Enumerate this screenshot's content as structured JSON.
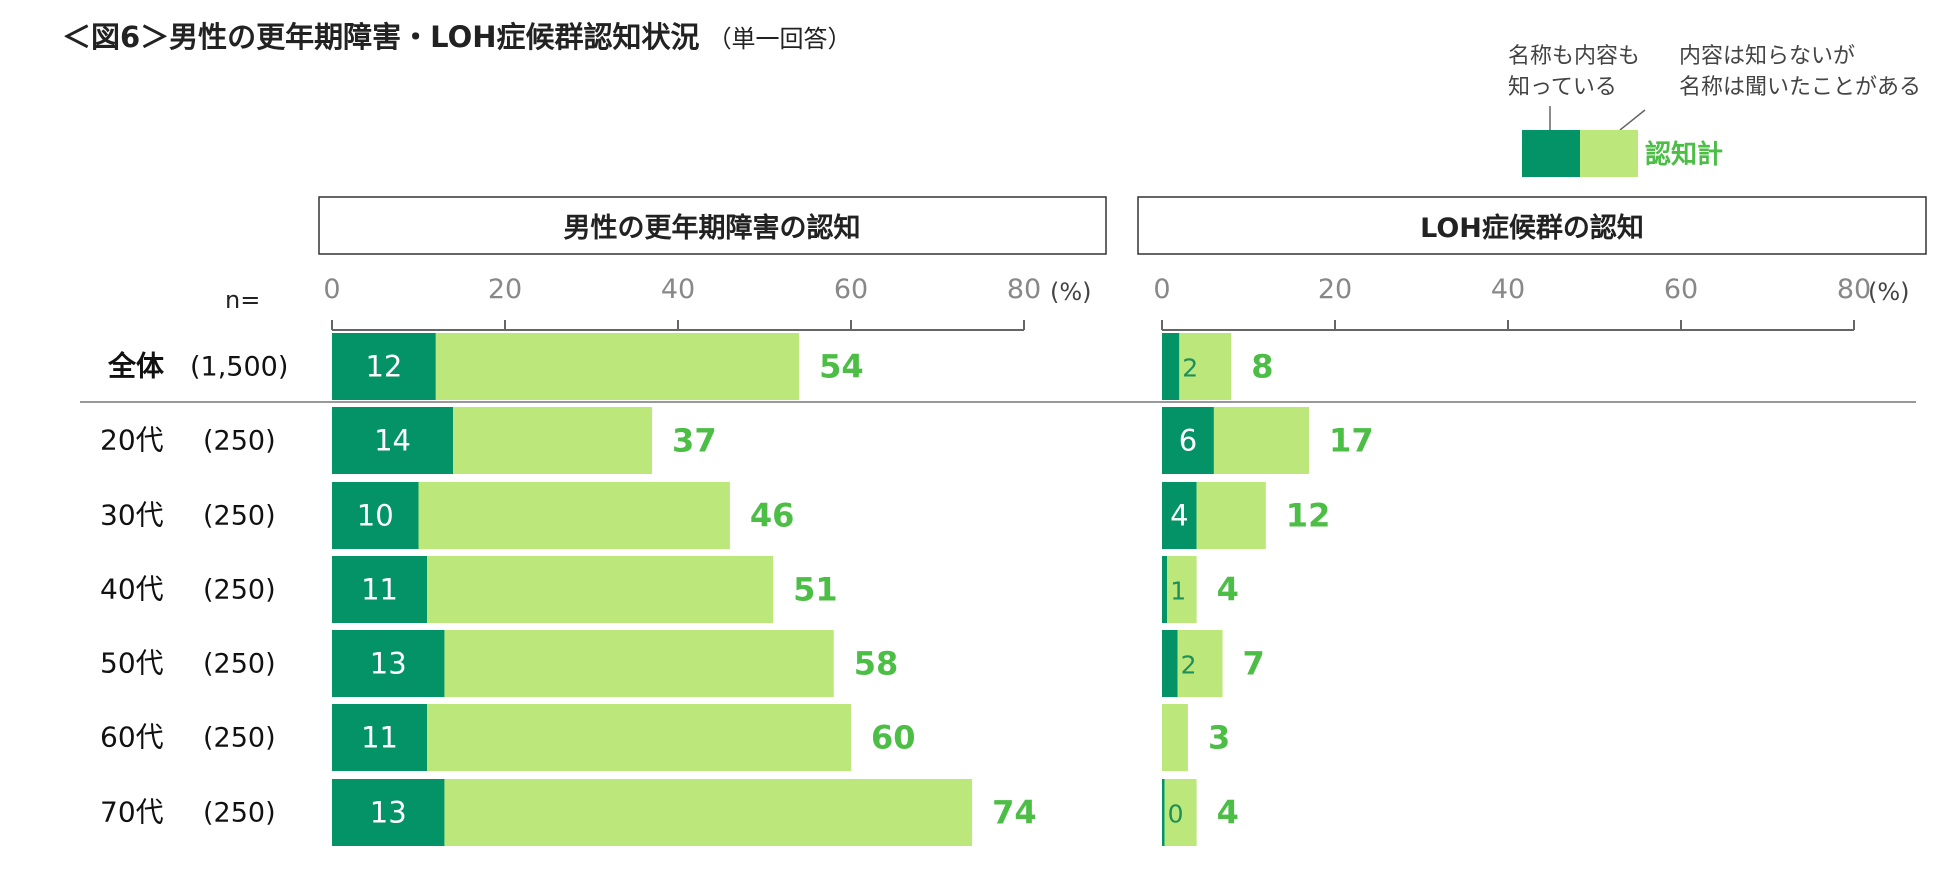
{
  "figure": {
    "title": "＜図6＞男性の更年期障害・LOH症候群認知状況",
    "subtitle": "（単一回答）"
  },
  "legend": {
    "known_both_label": [
      "名称も内容も",
      "知っている"
    ],
    "name_only_label": [
      "内容は知らないが",
      "名称は聞いたことがある"
    ],
    "total_label": "認知計"
  },
  "colors": {
    "known_both": "#039367",
    "name_only": "#bbe77b",
    "total_text": "#4cbe46",
    "axis": "#666666",
    "tick_text": "#888888"
  },
  "n_label": "n=",
  "unit_label": "(%)",
  "rows": [
    {
      "label": "全体",
      "n": "(1,500)",
      "bold": true
    },
    {
      "label": "20代",
      "n": "(250)"
    },
    {
      "label": "30代",
      "n": "(250)"
    },
    {
      "label": "40代",
      "n": "(250)"
    },
    {
      "label": "50代",
      "n": "(250)"
    },
    {
      "label": "60代",
      "n": "(250)"
    },
    {
      "label": "70代",
      "n": "(250)"
    }
  ],
  "chart_data": [
    {
      "type": "bar",
      "orientation": "horizontal",
      "stacked": true,
      "title": "男性の更年期障害の認知",
      "categories": [
        "全体",
        "20代",
        "30代",
        "40代",
        "50代",
        "60代",
        "70代"
      ],
      "xlim": [
        0,
        80
      ],
      "ticks": [
        0,
        20,
        40,
        60,
        80
      ],
      "series": [
        {
          "name": "名称も内容も知っている",
          "values": [
            12,
            14,
            10,
            11,
            13,
            11,
            13
          ],
          "labels": [
            "12",
            "14",
            "10",
            "11",
            "13",
            "11",
            "13"
          ]
        },
        {
          "name": "内容は知らないが名称は聞いたことがある",
          "values": [
            42,
            23,
            36,
            40,
            45,
            49,
            61
          ]
        }
      ],
      "totals": [
        54,
        37,
        46,
        51,
        58,
        60,
        74
      ],
      "total_labels": [
        "54",
        "37",
        "46",
        "51",
        "58",
        "60",
        "74"
      ]
    },
    {
      "type": "bar",
      "orientation": "horizontal",
      "stacked": true,
      "title": "LOH症候群の認知",
      "categories": [
        "全体",
        "20代",
        "30代",
        "40代",
        "50代",
        "60代",
        "70代"
      ],
      "xlim": [
        0,
        80
      ],
      "ticks": [
        0,
        20,
        40,
        60,
        80
      ],
      "series": [
        {
          "name": "名称も内容も知っている",
          "values": [
            2,
            6,
            4,
            0.6,
            1.8,
            0,
            0.3
          ],
          "labels": [
            "2",
            "6",
            "4",
            "1",
            "2",
            "",
            "0"
          ]
        },
        {
          "name": "内容は知らないが名称は聞いたことがある",
          "values": [
            6,
            11,
            8,
            3.4,
            5.2,
            3,
            3.7
          ]
        }
      ],
      "totals": [
        8,
        17,
        12,
        4,
        7,
        3,
        4
      ],
      "total_labels": [
        "8",
        "17",
        "12",
        "4",
        "7",
        "3",
        "4"
      ]
    }
  ]
}
